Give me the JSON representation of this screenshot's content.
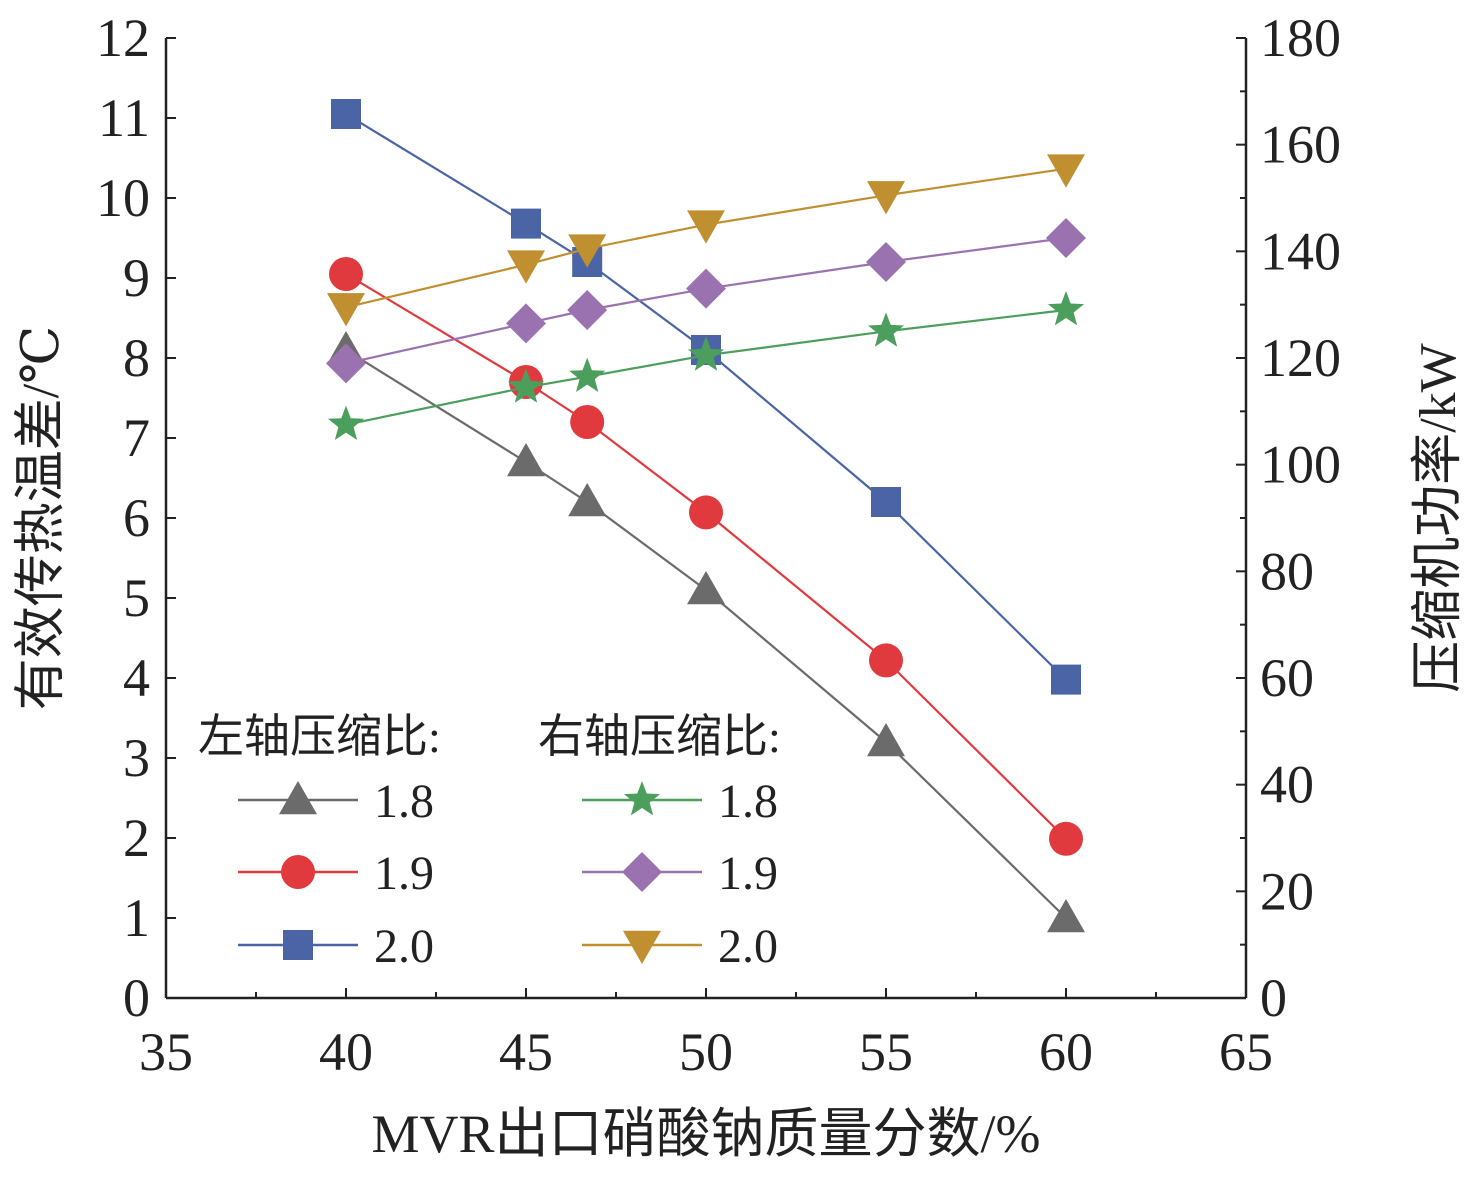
{
  "chart_data": {
    "type": "line",
    "xlabel": "MVR出口硝酸钠质量分数/%",
    "ylabel_left": "有效传热温差/℃",
    "ylabel_right": "压缩机功率/kW",
    "xlim": [
      35,
      65
    ],
    "ylim_left": [
      0,
      12
    ],
    "ylim_right": [
      0,
      180
    ],
    "x_ticks": [
      "35",
      "40",
      "45",
      "50",
      "55",
      "60",
      "65"
    ],
    "y_left_ticks": [
      "0",
      "1",
      "2",
      "3",
      "4",
      "5",
      "6",
      "7",
      "8",
      "9",
      "10",
      "11",
      "12"
    ],
    "y_right_ticks": [
      "0",
      "20",
      "40",
      "60",
      "80",
      "100",
      "120",
      "140",
      "160",
      "180"
    ],
    "legend": {
      "left_title": "左轴压缩比:",
      "right_title": "右轴压缩比:",
      "placement": "bottom-left"
    },
    "series": [
      {
        "name": "1.8",
        "axis": "left",
        "marker": "triangle-up",
        "color": "#6b6b6b",
        "x": [
          40,
          45,
          46.7,
          50,
          55,
          60
        ],
        "y": [
          8.1,
          6.7,
          6.2,
          5.1,
          3.2,
          1.0
        ]
      },
      {
        "name": "1.9",
        "axis": "left",
        "marker": "circle",
        "color": "#e0393e",
        "x": [
          40,
          45,
          46.7,
          50,
          55,
          60
        ],
        "y": [
          9.05,
          7.7,
          7.2,
          6.07,
          4.22,
          1.99
        ]
      },
      {
        "name": "2.0",
        "axis": "left",
        "marker": "square",
        "color": "#4a64a6",
        "x": [
          40,
          45,
          46.7,
          50,
          55,
          60
        ],
        "y": [
          11.05,
          9.68,
          9.2,
          8.1,
          6.2,
          3.98
        ]
      },
      {
        "name": "1.8",
        "axis": "right",
        "marker": "star",
        "color": "#4c9e5c",
        "x": [
          40,
          45,
          46.7,
          50,
          55,
          60
        ],
        "y": [
          107.5,
          114.5,
          116.5,
          120.5,
          125.0,
          129.0
        ]
      },
      {
        "name": "1.9",
        "axis": "right",
        "marker": "diamond",
        "color": "#9b72b0",
        "x": [
          40,
          45,
          46.7,
          50,
          55,
          60
        ],
        "y": [
          119.0,
          126.5,
          129.0,
          133.0,
          138.0,
          142.5
        ]
      },
      {
        "name": "2.0",
        "axis": "right",
        "marker": "triangle-down",
        "color": "#c08f30",
        "x": [
          40,
          45,
          46.7,
          50,
          55,
          60
        ],
        "y": [
          129.5,
          137.5,
          140.5,
          145.0,
          150.5,
          155.5
        ]
      }
    ]
  }
}
